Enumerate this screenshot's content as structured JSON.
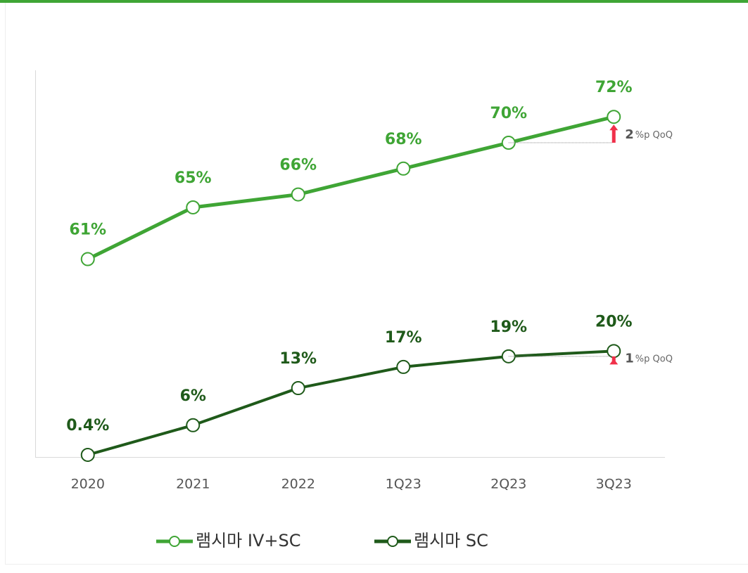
{
  "chart_data": {
    "type": "line",
    "categories": [
      "2020",
      "2021",
      "2022",
      "1Q23",
      "2Q23",
      "3Q23"
    ],
    "series": [
      {
        "name": "램시마 IV+SC",
        "color": "#3fa535",
        "values": [
          61,
          65,
          66,
          68,
          70,
          72
        ],
        "value_labels": [
          "61%",
          "65%",
          "66%",
          "68%",
          "70%",
          "72%"
        ]
      },
      {
        "name": "램시마 SC",
        "color": "#1f5a1a",
        "axis": "y2",
        "values": [
          0.4,
          6,
          13,
          17,
          19,
          20
        ],
        "value_labels": [
          "0.4%",
          "6%",
          "13%",
          "17%",
          "19%",
          "20%"
        ]
      }
    ],
    "ylim": [
      45.7,
      75.6
    ],
    "y2lim": [
      0,
      73
    ],
    "annotations": [
      {
        "series": 0,
        "value": 2,
        "unit": "%p QoQ"
      },
      {
        "series": 1,
        "value": 1,
        "unit": "%p QoQ"
      }
    ],
    "legend": "bottom"
  }
}
